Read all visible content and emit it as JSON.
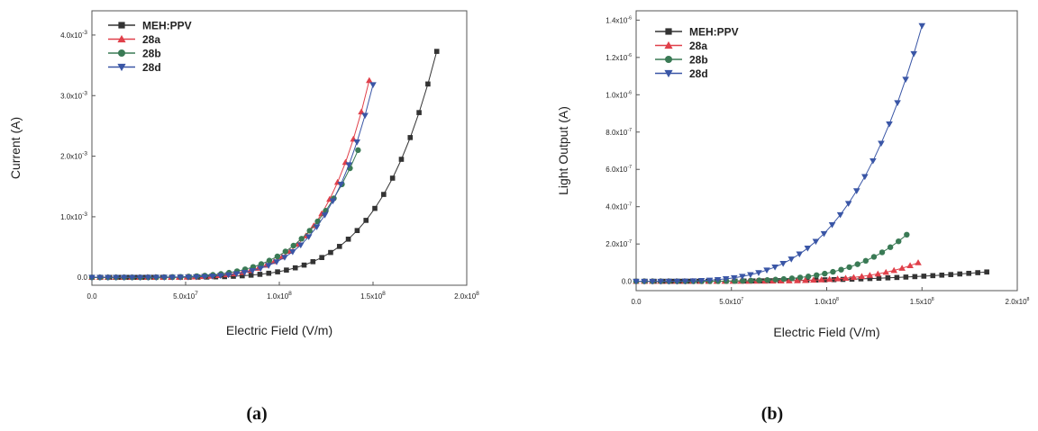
{
  "chart_data": [
    {
      "type": "line",
      "panel_label": "(a)",
      "xlabel": "Electric Field (V/m)",
      "ylabel": "Current (A)",
      "xlim": [
        0,
        200000000
      ],
      "ylim": [
        -0.00013,
        0.0044
      ],
      "x_ticks": [
        {
          "value": 0,
          "label": "0.0"
        },
        {
          "value": 50000000,
          "label": "5.0x10",
          "exp": "7"
        },
        {
          "value": 100000000,
          "label": "1.0x10",
          "exp": "8"
        },
        {
          "value": 150000000,
          "label": "1.5x10",
          "exp": "8"
        },
        {
          "value": 200000000,
          "label": "2.0x10",
          "exp": "8"
        }
      ],
      "y_ticks": [
        {
          "value": 0,
          "label": "0.0"
        },
        {
          "value": 0.001,
          "label": "1.0x10",
          "exp": "-3"
        },
        {
          "value": 0.002,
          "label": "2.0x10",
          "exp": "-3"
        },
        {
          "value": 0.003,
          "label": "3.0x10",
          "exp": "-3"
        },
        {
          "value": 0.004,
          "label": "4.0x10",
          "exp": "-3"
        }
      ],
      "legend_position": "top-left",
      "series": [
        {
          "name": "MEH:PPV",
          "color": "#333333",
          "marker": "square",
          "xmax": 184000000,
          "ymax": 0.00373,
          "k": 6,
          "npoints": 40
        },
        {
          "name": "28a",
          "color": "#e0404a",
          "marker": "triangle-up",
          "xmax": 148000000,
          "ymax": 0.00325,
          "k": 6,
          "npoints": 36
        },
        {
          "name": "28b",
          "color": "#3a7a55",
          "marker": "circle",
          "xmax": 142000000,
          "ymax": 0.0021,
          "k": 5,
          "npoints": 34
        },
        {
          "name": "28d",
          "color": "#3a56a6",
          "marker": "triangle-down",
          "xmax": 150000000,
          "ymax": 0.00318,
          "k": 6,
          "npoints": 36
        }
      ]
    },
    {
      "type": "line",
      "panel_label": "(b)",
      "xlabel": "Electric Field (V/m)",
      "ylabel": "Light Output (A)",
      "xlim": [
        0,
        200000000
      ],
      "ylim": [
        -5e-08,
        1.45e-06
      ],
      "x_ticks": [
        {
          "value": 0,
          "label": "0.0"
        },
        {
          "value": 50000000,
          "label": "5.0x10",
          "exp": "7"
        },
        {
          "value": 100000000,
          "label": "1.0x10",
          "exp": "8"
        },
        {
          "value": 150000000,
          "label": "1.5x10",
          "exp": "8"
        },
        {
          "value": 200000000,
          "label": "2.0x10",
          "exp": "8"
        }
      ],
      "y_ticks": [
        {
          "value": 0,
          "label": "0.0"
        },
        {
          "value": 2e-07,
          "label": "2.0x10",
          "exp": "-7"
        },
        {
          "value": 4e-07,
          "label": "4.0x10",
          "exp": "-7"
        },
        {
          "value": 6e-07,
          "label": "6.0x10",
          "exp": "-7"
        },
        {
          "value": 8e-07,
          "label": "8.0x10",
          "exp": "-7"
        },
        {
          "value": 1e-06,
          "label": "1.0x10",
          "exp": "-6"
        },
        {
          "value": 1.2e-06,
          "label": "1.2x10",
          "exp": "-6"
        },
        {
          "value": 1.4e-06,
          "label": "1.4x10",
          "exp": "-6"
        }
      ],
      "legend_position": "top-left",
      "series": [
        {
          "name": "MEH:PPV",
          "color": "#333333",
          "marker": "square",
          "xmax": 184000000,
          "ymax": 5e-08,
          "k": 3,
          "npoints": 40
        },
        {
          "name": "28a",
          "color": "#e0404a",
          "marker": "triangle-up",
          "xmax": 148000000,
          "ymax": 1e-07,
          "k": 6,
          "npoints": 36
        },
        {
          "name": "28b",
          "color": "#3a7a55",
          "marker": "circle",
          "xmax": 142000000,
          "ymax": 2.5e-07,
          "k": 5,
          "npoints": 34
        },
        {
          "name": "28d",
          "color": "#3a56a6",
          "marker": "triangle-down",
          "xmax": 150000000,
          "ymax": 1.37e-06,
          "k": 4,
          "npoints": 36
        }
      ]
    }
  ]
}
